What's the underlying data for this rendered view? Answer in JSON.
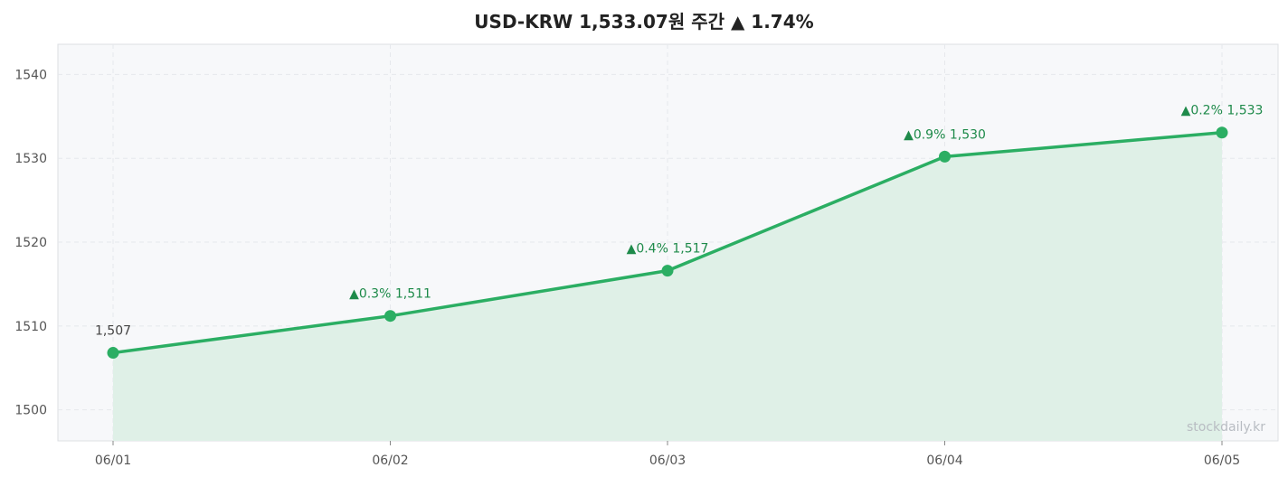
{
  "chart_data": {
    "type": "line",
    "title": "USD-KRW  1,533.07원  주간 ▲ 1.74%",
    "categories": [
      "06/01",
      "06/02",
      "06/03",
      "06/04",
      "06/05"
    ],
    "series": [
      {
        "values": [
          1506.8,
          1511.2,
          1516.6,
          1530.2,
          1533.07
        ]
      }
    ],
    "point_labels": [
      "1,507",
      "▲0.3%  1,511",
      "▲0.4%  1,517",
      "▲0.9%  1,530",
      "▲0.2%  1,533"
    ],
    "yticks": [
      1500,
      1510,
      1520,
      1530,
      1540
    ],
    "ylim": [
      1496.3,
      1543.6
    ],
    "grid": true,
    "area_fill": true,
    "watermark": "stockdaily.kr"
  },
  "colors": {
    "line": "#2bae63",
    "fill": "#dff0e7",
    "up_label": "#1e8a4a",
    "neutral_label": "#444444",
    "plot_bg": "#f7f8fa",
    "grid": "#e6e8ec",
    "frame": "#dcdfe3"
  }
}
